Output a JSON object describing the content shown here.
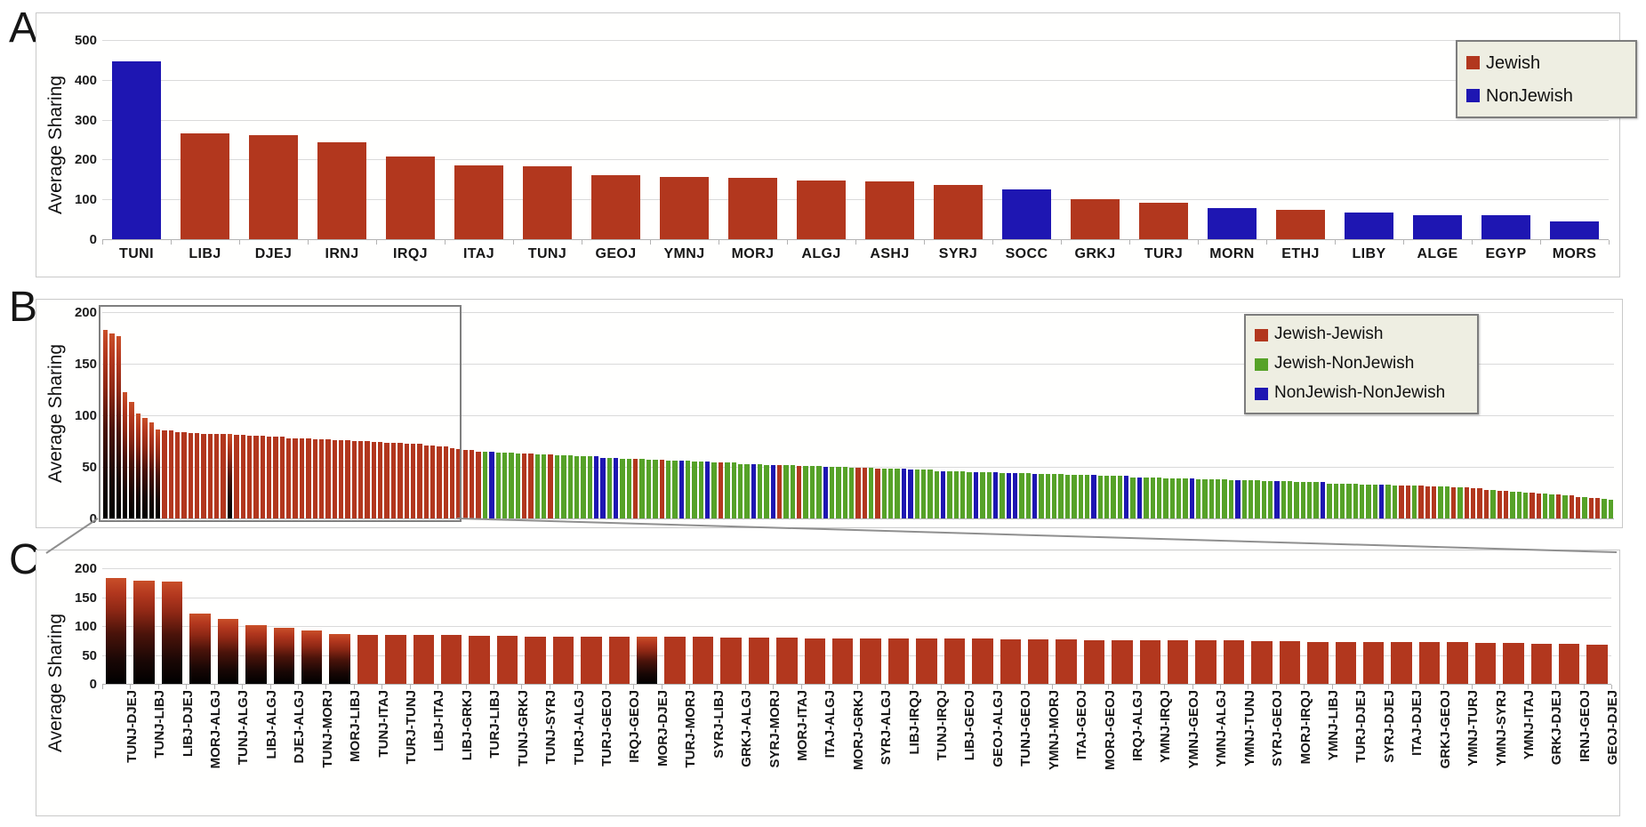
{
  "figure": {
    "background": "#ffffff"
  },
  "color_map": {
    "r": "#b2371e",
    "g": "#56a228",
    "b": "#1e16b2"
  },
  "style_colors": {
    "jewish_red": "#b2371e",
    "jewish_nonjewish_green": "#56a228",
    "nonjewish_blue": "#1e16b2",
    "legend_background": "#eeeee2",
    "legend_border": "#7d7d7d",
    "gridline": "#dadada",
    "zoom_box_border": "#7f7f7f",
    "connector_line": "#8f8f8f"
  },
  "chart_data": [
    {
      "panel": "A",
      "type": "bar",
      "title": "",
      "xlabel": "",
      "ylabel": "Average Sharing",
      "ylim": [
        0,
        500
      ],
      "yticks": [
        0,
        100,
        200,
        300,
        400,
        500
      ],
      "grid": true,
      "legend_position": "top-right",
      "legend": [
        {
          "name": "Jewish",
          "color": "#b2371e"
        },
        {
          "name": "NonJewish",
          "color": "#1e16b2"
        }
      ],
      "categories": [
        "TUNI",
        "LIBJ",
        "DJEJ",
        "IRNJ",
        "IRQJ",
        "ITAJ",
        "TUNJ",
        "GEOJ",
        "YMNJ",
        "MORJ",
        "ALGJ",
        "ASHJ",
        "SYRJ",
        "SOCC",
        "GRKJ",
        "TURJ",
        "MORN",
        "ETHJ",
        "LIBY",
        "ALGE",
        "EGYP",
        "MORS"
      ],
      "values": [
        447,
        265,
        262,
        243,
        207,
        186,
        184,
        160,
        156,
        154,
        148,
        146,
        137,
        126,
        100,
        91,
        78,
        73,
        68,
        60,
        61,
        45
      ],
      "bar_colors": "brrrrrrrrrrrrbrrbrbbbb"
    },
    {
      "panel": "B",
      "type": "bar",
      "title": "",
      "xlabel": "",
      "ylabel": "Average Sharing",
      "ylim": [
        0,
        200
      ],
      "yticks": [
        0,
        50,
        100,
        150,
        200
      ],
      "grid": true,
      "legend_position": "top-right",
      "legend": [
        {
          "name": "Jewish-Jewish",
          "color": "#b2371e"
        },
        {
          "name": "Jewish-NonJewish",
          "color": "#56a228"
        },
        {
          "name": "NonJewish-NonJewish",
          "color": "#1e16b2"
        }
      ],
      "categories": [],
      "x_axis_note": "231 unlabeled population-pair bars, sorted descending; first 54 bars are expanded in panel C",
      "encoding": "values_rle and colors_rle are run-length encoded as [count, value]; colors r=Jewish-Jewish red, g=Jewish-NonJewish green, b=NonJewish-NonJewish blue",
      "values_rle": [
        [
          1,
          183
        ],
        [
          1,
          179
        ],
        [
          1,
          177
        ],
        [
          1,
          122
        ],
        [
          1,
          113
        ],
        [
          1,
          102
        ],
        [
          1,
          97
        ],
        [
          1,
          93
        ],
        [
          1,
          86
        ],
        [
          2,
          85
        ],
        [
          2,
          84
        ],
        [
          2,
          83
        ],
        [
          5,
          82
        ],
        [
          2,
          81
        ],
        [
          3,
          80
        ],
        [
          3,
          79
        ],
        [
          4,
          78
        ],
        [
          3,
          77
        ],
        [
          3,
          76
        ],
        [
          3,
          75
        ],
        [
          2,
          74
        ],
        [
          3,
          73
        ],
        [
          3,
          72
        ],
        [
          2,
          71
        ],
        [
          2,
          70
        ],
        [
          1,
          68
        ],
        [
          1,
          67
        ],
        [
          2,
          66
        ],
        [
          3,
          65
        ],
        [
          3,
          64
        ],
        [
          3,
          63
        ],
        [
          3,
          62
        ],
        [
          3,
          61
        ],
        [
          4,
          60
        ],
        [
          3,
          59
        ],
        [
          4,
          58
        ],
        [
          3,
          57
        ],
        [
          4,
          56
        ],
        [
          3,
          55
        ],
        [
          4,
          54
        ],
        [
          4,
          53
        ],
        [
          3,
          52
        ],
        [
          2,
          52
        ],
        [
          4,
          51
        ],
        [
          4,
          50
        ],
        [
          4,
          49
        ],
        [
          5,
          48
        ],
        [
          4,
          47
        ],
        [
          5,
          46
        ],
        [
          5,
          45
        ],
        [
          5,
          44
        ],
        [
          5,
          43
        ],
        [
          5,
          42
        ],
        [
          2,
          41
        ],
        [
          3,
          41
        ],
        [
          5,
          40
        ],
        [
          5,
          39
        ],
        [
          5,
          38
        ],
        [
          5,
          37
        ],
        [
          5,
          36
        ],
        [
          5,
          35
        ],
        [
          5,
          34
        ],
        [
          5,
          33
        ],
        [
          5,
          32
        ],
        [
          2,
          31
        ],
        [
          2,
          31
        ],
        [
          3,
          30
        ],
        [
          2,
          29
        ],
        [
          2,
          28
        ],
        [
          2,
          27
        ],
        [
          2,
          26
        ],
        [
          2,
          25
        ],
        [
          2,
          24
        ],
        [
          2,
          23
        ],
        [
          2,
          22
        ],
        [
          2,
          21
        ],
        [
          2,
          20
        ],
        [
          1,
          19
        ],
        [
          1,
          18
        ]
      ],
      "colors_rle": [
        [
          54,
          "r"
        ],
        [
          4,
          "r"
        ],
        [
          1,
          "g"
        ],
        [
          1,
          "b"
        ],
        [
          4,
          "g"
        ],
        [
          2,
          "r"
        ],
        [
          2,
          "g"
        ],
        [
          1,
          "r"
        ],
        [
          6,
          "g"
        ],
        [
          2,
          "b"
        ],
        [
          1,
          "g"
        ],
        [
          1,
          "b"
        ],
        [
          2,
          "g"
        ],
        [
          1,
          "r"
        ],
        [
          3,
          "g"
        ],
        [
          1,
          "r"
        ],
        [
          2,
          "g"
        ],
        [
          1,
          "b"
        ],
        [
          3,
          "g"
        ],
        [
          1,
          "b"
        ],
        [
          1,
          "g"
        ],
        [
          1,
          "r"
        ],
        [
          4,
          "g"
        ],
        [
          1,
          "b"
        ],
        [
          2,
          "g"
        ],
        [
          1,
          "b"
        ],
        [
          1,
          "r"
        ],
        [
          2,
          "g"
        ],
        [
          1,
          "r"
        ],
        [
          3,
          "g"
        ],
        [
          1,
          "b"
        ],
        [
          4,
          "g"
        ],
        [
          2,
          "r"
        ],
        [
          1,
          "g"
        ],
        [
          1,
          "r"
        ],
        [
          3,
          "g"
        ],
        [
          2,
          "b"
        ],
        [
          4,
          "g"
        ],
        [
          1,
          "b"
        ],
        [
          4,
          "g"
        ],
        [
          1,
          "b"
        ],
        [
          2,
          "g"
        ],
        [
          1,
          "b"
        ],
        [
          1,
          "g"
        ],
        [
          2,
          "b"
        ],
        [
          2,
          "g"
        ],
        [
          1,
          "b"
        ],
        [
          8,
          "g"
        ],
        [
          1,
          "b"
        ],
        [
          2,
          "g"
        ],
        [
          2,
          "g"
        ],
        [
          1,
          "b"
        ],
        [
          1,
          "g"
        ],
        [
          1,
          "b"
        ],
        [
          7,
          "g"
        ],
        [
          1,
          "b"
        ],
        [
          6,
          "g"
        ],
        [
          1,
          "b"
        ],
        [
          5,
          "g"
        ],
        [
          1,
          "b"
        ],
        [
          6,
          "g"
        ],
        [
          1,
          "b"
        ],
        [
          8,
          "g"
        ],
        [
          1,
          "b"
        ],
        [
          2,
          "g"
        ],
        [
          2,
          "r"
        ],
        [
          1,
          "g"
        ],
        [
          3,
          "r"
        ],
        [
          2,
          "g"
        ],
        [
          1,
          "r"
        ],
        [
          1,
          "g"
        ],
        [
          4,
          "r"
        ],
        [
          1,
          "g"
        ],
        [
          2,
          "r"
        ],
        [
          3,
          "g"
        ],
        [
          2,
          "r"
        ],
        [
          2,
          "g"
        ],
        [
          1,
          "r"
        ],
        [
          1,
          "g"
        ],
        [
          2,
          "r"
        ],
        [
          1,
          "g"
        ],
        [
          2,
          "r"
        ],
        [
          2,
          "g"
        ]
      ],
      "gradient_bar_indices": [
        0,
        1,
        2,
        3,
        4,
        5,
        6,
        7,
        8,
        19
      ],
      "zoom_box": {
        "covers_bars_from": 1,
        "covers_bars_to": 54,
        "expanded_in_panel": "C"
      }
    },
    {
      "panel": "C",
      "type": "bar",
      "title": "",
      "xlabel": "",
      "ylabel": "Average Sharing",
      "ylim": [
        0,
        200
      ],
      "yticks": [
        0,
        50,
        100,
        150,
        200
      ],
      "grid": true,
      "legend": [],
      "categories": [
        "TUNJ-DJEJ",
        "TUNJ-LIBJ",
        "LIBJ-DJEJ",
        "MORJ-ALGJ",
        "TUNJ-ALGJ",
        "LIBJ-ALGJ",
        "DJEJ-ALGJ",
        "TUNJ-MORJ",
        "MORJ-LIBJ",
        "TUNJ-ITAJ",
        "TURJ-TUNJ",
        "LIBJ-ITAJ",
        "LIBJ-GRKJ",
        "TURJ-LIBJ",
        "TUNJ-GRKJ",
        "TUNJ-SYRJ",
        "TURJ-ALGJ",
        "TURJ-GEOJ",
        "IRQJ-GEOJ",
        "MORJ-DJEJ",
        "TURJ-MORJ",
        "SYRJ-LIBJ",
        "GRKJ-ALGJ",
        "SYRJ-MORJ",
        "MORJ-ITAJ",
        "ITAJ-ALGJ",
        "MORJ-GRKJ",
        "SYRJ-ALGJ",
        "LIBJ-IRQJ",
        "TUNJ-IRQJ",
        "LIBJ-GEOJ",
        "GEOJ-ALGJ",
        "TUNJ-GEOJ",
        "YMNJ-MORJ",
        "ITAJ-GEOJ",
        "MORJ-GEOJ",
        "IRQJ-ALGJ",
        "YMNJ-IRQJ",
        "YMNJ-GEOJ",
        "YMNJ-ALGJ",
        "YMNJ-TUNJ",
        "SYRJ-GEOJ",
        "MORJ-IRQJ",
        "YMNJ-LIBJ",
        "TURJ-DJEJ",
        "SYRJ-DJEJ",
        "ITAJ-DJEJ",
        "GRKJ-GEOJ",
        "YMNJ-TURJ",
        "YMNJ-SYRJ",
        "YMNJ-ITAJ",
        "GRKJ-DJEJ",
        "IRNJ-GEOJ",
        "GEOJ-DJEJ"
      ],
      "values": [
        183,
        179,
        177,
        122,
        113,
        102,
        97,
        93,
        86,
        85,
        85,
        84,
        84,
        83,
        83,
        82,
        82,
        82,
        82,
        82,
        81,
        81,
        80,
        80,
        80,
        79,
        79,
        79,
        78,
        78,
        78,
        78,
        77,
        77,
        77,
        76,
        76,
        76,
        75,
        75,
        75,
        74,
        74,
        73,
        73,
        73,
        72,
        72,
        72,
        71,
        71,
        70,
        70,
        68
      ],
      "bar_colors_all": "r",
      "gradient_bar_indices": [
        0,
        1,
        2,
        3,
        4,
        5,
        6,
        7,
        8,
        19
      ]
    }
  ]
}
